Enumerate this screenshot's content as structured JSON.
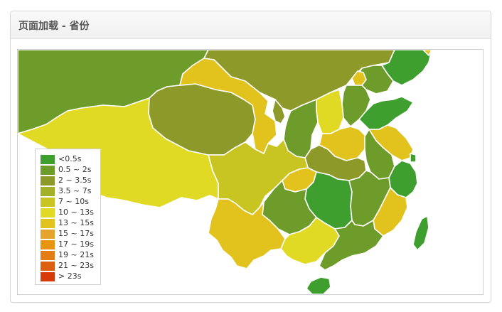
{
  "panel": {
    "title": "页面加载 - 省份"
  },
  "colors": {
    "c1": "#3f9f2e",
    "c2": "#6e9c2a",
    "c3": "#8d9a2a",
    "c4": "#a3b128",
    "c5": "#c8c522",
    "c6": "#e1da24",
    "c7": "#e2c21d",
    "c8": "#e5a42a",
    "c9": "#e8940f",
    "c10": "#e37c14",
    "c11": "#dc5e0f",
    "c12": "#d63a07"
  },
  "legend": {
    "items": [
      {
        "label": "<0.5s",
        "color": "#3f9f2e"
      },
      {
        "label": "0.5 ~ 2s",
        "color": "#6e9c2a"
      },
      {
        "label": "2 ~ 3.5s",
        "color": "#8d9a2a"
      },
      {
        "label": "3.5 ~ 7s",
        "color": "#a3b128"
      },
      {
        "label": "7 ~ 10s",
        "color": "#c8c522"
      },
      {
        "label": "10 ~ 13s",
        "color": "#e1da24"
      },
      {
        "label": "13 ~ 15s",
        "color": "#e2c21d"
      },
      {
        "label": "15 ~ 17s",
        "color": "#e5a42a"
      },
      {
        "label": "17 ~ 19s",
        "color": "#e8940f"
      },
      {
        "label": "19 ~ 21s",
        "color": "#e37c14"
      },
      {
        "label": "21 ~ 23s",
        "color": "#dc5e0f"
      },
      {
        "label": "> 23s",
        "color": "#d63a07"
      }
    ]
  }
}
